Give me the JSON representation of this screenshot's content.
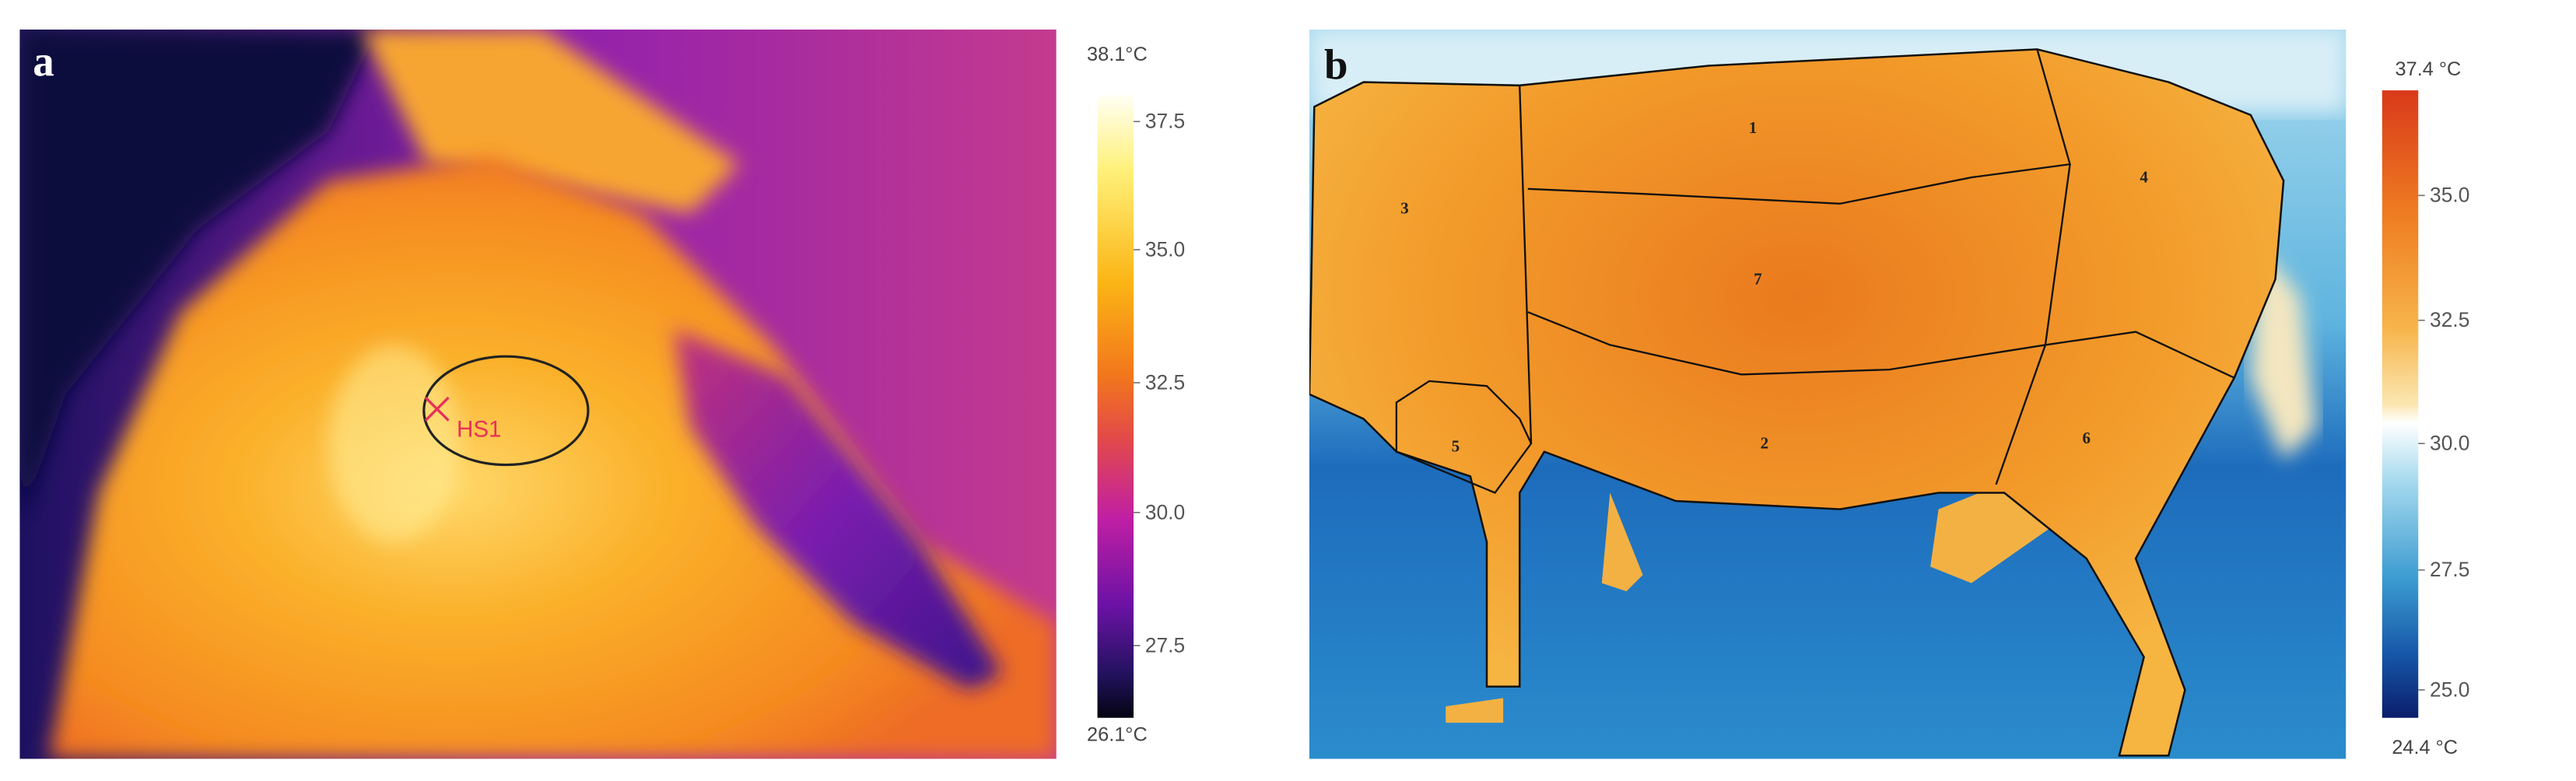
{
  "panels": [
    {
      "label": "a",
      "annotation": "HS1",
      "colorbar": {
        "max_label": "38.1°C",
        "min_label": "26.1°C",
        "ticks": [
          "37.5",
          "35.0",
          "32.5",
          "30.0",
          "27.5"
        ]
      }
    },
    {
      "label": "b",
      "regions": [
        "1",
        "3",
        "4",
        "7",
        "5",
        "2",
        "6"
      ],
      "colorbar": {
        "max_label": "37.4 °C",
        "min_label": "24.4 °C",
        "ticks": [
          "35.0",
          "32.5",
          "30.0",
          "27.5",
          "25.0"
        ]
      }
    }
  ]
}
